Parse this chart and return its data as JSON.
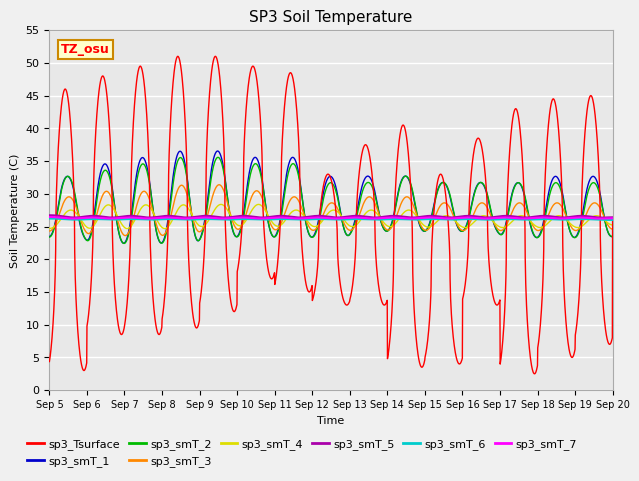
{
  "title": "SP3 Soil Temperature",
  "xlabel": "Time",
  "ylabel": "Soil Temperature (C)",
  "ylim": [
    0,
    55
  ],
  "yticks": [
    0,
    5,
    10,
    15,
    20,
    25,
    30,
    35,
    40,
    45,
    50,
    55
  ],
  "xtick_labels": [
    "Sep 5",
    "Sep 6",
    "Sep 7",
    "Sep 8",
    "Sep 9",
    "Sep 10",
    "Sep 11",
    "Sep 12",
    "Sep 13",
    "Sep 14",
    "Sep 15",
    "Sep 16",
    "Sep 17",
    "Sep 18",
    "Sep 19",
    "Sep 20"
  ],
  "annotation_text": "TZ_osu",
  "annotation_bg": "#ffffcc",
  "annotation_border": "#cc8800",
  "series_colors": {
    "sp3_Tsurface": "#ff0000",
    "sp3_smT_1": "#0000cc",
    "sp3_smT_2": "#00bb00",
    "sp3_smT_3": "#ff8800",
    "sp3_smT_4": "#dddd00",
    "sp3_smT_5": "#aa00aa",
    "sp3_smT_6": "#00cccc",
    "sp3_smT_7": "#ff00ff"
  },
  "bg_color": "#e8e8e8",
  "grid_color": "#ffffff",
  "fig_bg": "#f0f0f0"
}
